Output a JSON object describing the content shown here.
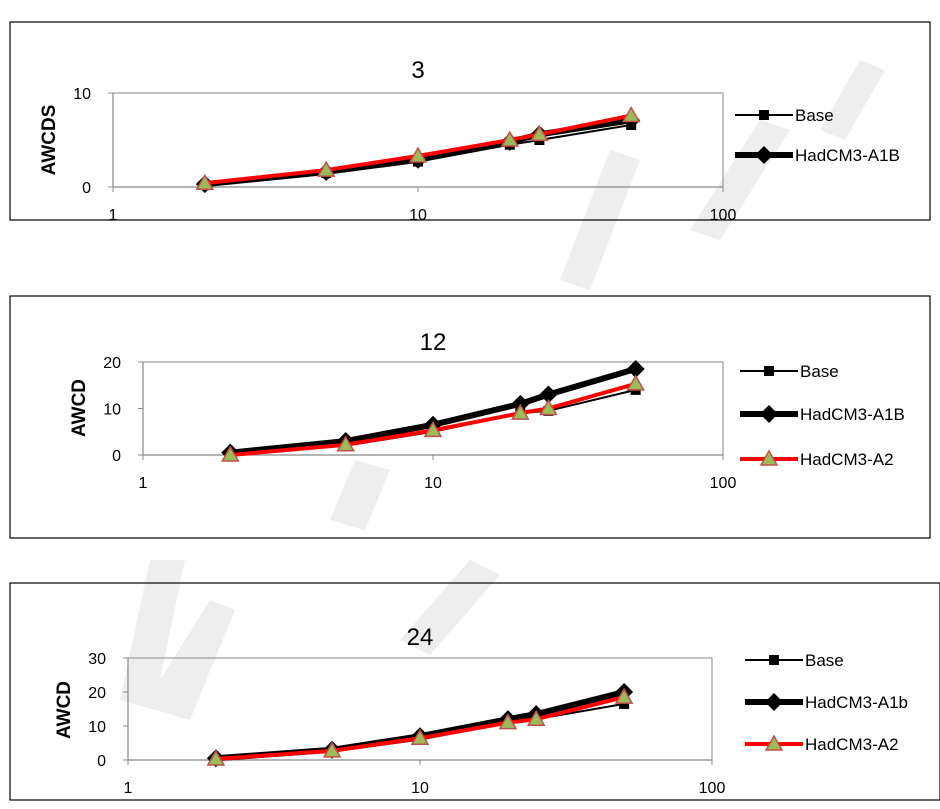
{
  "chart_data": [
    {
      "type": "line",
      "title": "3",
      "ylabel": "AWCDS",
      "xlabel": "",
      "xscale": "log",
      "xlim": [
        1,
        100
      ],
      "ylim": [
        0,
        10
      ],
      "xticks": [
        "1",
        "10",
        "100"
      ],
      "yticks": [
        "0",
        "10"
      ],
      "grid": "off",
      "legend": "right",
      "x": [
        2,
        5,
        10,
        20,
        25,
        50
      ],
      "series": [
        {
          "name": "Base",
          "values": [
            0.2,
            1.5,
            2.7,
            4.5,
            5.0,
            6.6
          ],
          "color": "#000000",
          "marker": "square",
          "width": 2
        },
        {
          "name": "HadCM3-A1B",
          "values": [
            0.3,
            1.6,
            2.9,
            4.8,
            5.6,
            7.1
          ],
          "color": "#000000",
          "marker": "diamond",
          "width": 6
        },
        {
          "values": [
            0.4,
            1.8,
            3.3,
            5.0,
            5.6,
            7.6
          ],
          "color": "#ff0000",
          "marker": "triangle",
          "width": 4
        }
      ]
    },
    {
      "type": "line",
      "title": "12",
      "ylabel": "AWCD",
      "xlabel": "",
      "xscale": "log",
      "xlim": [
        1,
        100
      ],
      "ylim": [
        0,
        20
      ],
      "xticks": [
        "1",
        "10",
        "100"
      ],
      "yticks": [
        "0",
        "10",
        "20"
      ],
      "grid": "off",
      "legend": "right",
      "x": [
        2,
        5,
        10,
        20,
        25,
        50
      ],
      "series": [
        {
          "name": "Base",
          "values": [
            0.0,
            2.0,
            5.0,
            9.0,
            9.5,
            14.0
          ],
          "color": "#000000",
          "marker": "square",
          "width": 2
        },
        {
          "name": "HadCM3-A1B",
          "values": [
            0.5,
            3.0,
            6.5,
            11.0,
            13.0,
            18.5
          ],
          "color": "#000000",
          "marker": "diamond",
          "width": 6
        },
        {
          "name": "HadCM3-A2",
          "values": [
            0.0,
            2.2,
            5.3,
            9.0,
            10.0,
            15.3
          ],
          "color": "#ff0000",
          "marker": "triangle",
          "width": 4
        }
      ]
    },
    {
      "type": "line",
      "title": "24",
      "ylabel": "AWCD",
      "xlabel": "",
      "xscale": "log",
      "xlim": [
        1,
        100
      ],
      "ylim": [
        0,
        30
      ],
      "xticks": [
        "1",
        "10",
        "100"
      ],
      "yticks": [
        "0",
        "10",
        "20",
        "30"
      ],
      "grid": "off",
      "legend": "right",
      "x": [
        2,
        5,
        10,
        20,
        25,
        50
      ],
      "series": [
        {
          "name": "Base",
          "values": [
            0.2,
            2.5,
            6.0,
            11.0,
            12.0,
            16.5
          ],
          "color": "#000000",
          "marker": "square",
          "width": 2
        },
        {
          "name": "HadCM3-A1b",
          "values": [
            0.5,
            3.0,
            7.0,
            12.0,
            13.5,
            20.0
          ],
          "color": "#000000",
          "marker": "diamond",
          "width": 6
        },
        {
          "name": "HadCM3-A2",
          "values": [
            0.3,
            2.7,
            6.4,
            11.0,
            12.0,
            18.5
          ],
          "color": "#ff0000",
          "marker": "triangle",
          "width": 4
        }
      ]
    }
  ]
}
